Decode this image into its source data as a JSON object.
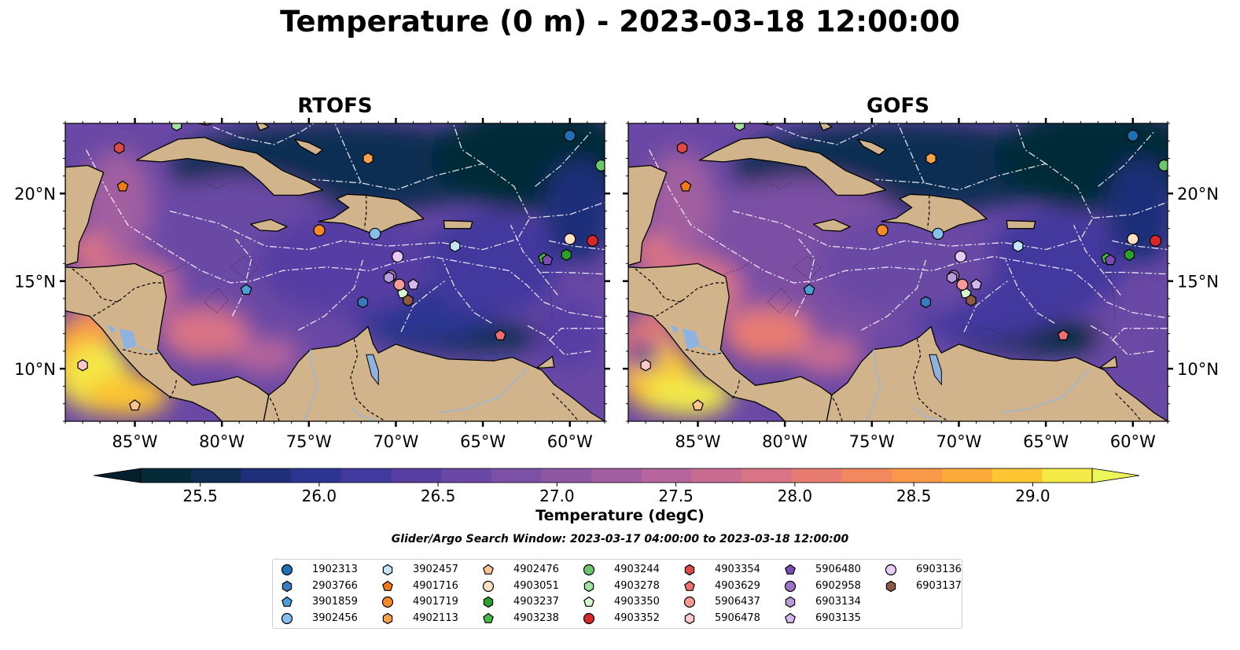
{
  "title": "Temperature (0 m) - 2023-03-18 12:00:00",
  "panels": [
    {
      "title": "RTOFS"
    },
    {
      "title": "GOFS"
    }
  ],
  "map_extent": {
    "lon": [
      -89,
      -58
    ],
    "lat": [
      7,
      24
    ]
  },
  "lon_ticks": [
    {
      "value": -85,
      "label": "85°W"
    },
    {
      "value": -80,
      "label": "80°W"
    },
    {
      "value": -75,
      "label": "75°W"
    },
    {
      "value": -70,
      "label": "70°W"
    },
    {
      "value": -65,
      "label": "65°W"
    },
    {
      "value": -60,
      "label": "60°W"
    }
  ],
  "lat_ticks": [
    {
      "value": 10,
      "label": "10°N"
    },
    {
      "value": 15,
      "label": "15°N"
    },
    {
      "value": 20,
      "label": "20°N"
    }
  ],
  "colorbar": {
    "label": "Temperature (degC)",
    "min": 25.25,
    "max": 29.25,
    "extend": "both",
    "ticks": [
      {
        "value": 25.5,
        "label": "25.5"
      },
      {
        "value": 26.0,
        "label": "26.0"
      },
      {
        "value": 26.5,
        "label": "26.5"
      },
      {
        "value": 27.0,
        "label": "27.0"
      },
      {
        "value": 27.5,
        "label": "27.5"
      },
      {
        "value": 28.0,
        "label": "28.0"
      },
      {
        "value": 28.5,
        "label": "28.5"
      },
      {
        "value": 29.0,
        "label": "29.0"
      }
    ],
    "colors": [
      "#062a38",
      "#0f2d52",
      "#1f2f79",
      "#2c3591",
      "#42399e",
      "#563ea3",
      "#6a48a5",
      "#7c50a4",
      "#8e57a2",
      "#a15ea0",
      "#b5659b",
      "#c86c92",
      "#d97386",
      "#e87c73",
      "#f3885e",
      "#f99848",
      "#fcab39",
      "#fcc531",
      "#f3ea48"
    ],
    "under_color": "#04202c",
    "over_color": "#ecf65a"
  },
  "search_window": "Glider/Argo Search Window: 2023-03-17 04:00:00 to 2023-03-18 12:00:00",
  "colors": {
    "land": "#d2b48c",
    "lake": "#8fb3e0",
    "background_sea": "#6a48a5"
  },
  "platforms": [
    {
      "id": "1902313",
      "marker": "circle",
      "color": "#1f6fb4",
      "lon": -60.0,
      "lat": 23.3
    },
    {
      "id": "2903766",
      "marker": "hexagon",
      "color": "#3a7bc0",
      "lon": -71.9,
      "lat": 13.8
    },
    {
      "id": "3901859",
      "marker": "pentagon",
      "color": "#4d9ed6",
      "lon": -78.6,
      "lat": 14.5
    },
    {
      "id": "3902456",
      "marker": "circle",
      "color": "#85c0ec",
      "lon": -71.2,
      "lat": 17.7
    },
    {
      "id": "3902457",
      "marker": "hexagon",
      "color": "#c6e4f8",
      "lon": -66.6,
      "lat": 17.0
    },
    {
      "id": "4901716",
      "marker": "pentagon",
      "color": "#f07b12",
      "lon": -85.7,
      "lat": 20.4
    },
    {
      "id": "4901719",
      "marker": "circle",
      "color": "#f58b27",
      "lon": -74.4,
      "lat": 17.9
    },
    {
      "id": "4902113",
      "marker": "hexagon",
      "color": "#f8a14a",
      "lon": -71.6,
      "lat": 22.0
    },
    {
      "id": "4902476",
      "marker": "pentagon",
      "color": "#fbc58e",
      "lon": -85.0,
      "lat": 7.9
    },
    {
      "id": "4903051",
      "marker": "circle",
      "color": "#fde0c4",
      "lon": -60.0,
      "lat": 17.4
    },
    {
      "id": "4903237",
      "marker": "hexagon",
      "color": "#2aa12a",
      "lon": -60.2,
      "lat": 16.5
    },
    {
      "id": "4903238",
      "marker": "pentagon",
      "color": "#45b845",
      "lon": -61.5,
      "lat": 16.3
    },
    {
      "id": "4903244",
      "marker": "circle",
      "color": "#6bc66b",
      "lon": -58.2,
      "lat": 21.6
    },
    {
      "id": "4903278",
      "marker": "hexagon",
      "color": "#a3e0a0",
      "lon": -82.6,
      "lat": 23.9
    },
    {
      "id": "4903350",
      "marker": "pentagon",
      "color": "#d5f6d0",
      "lon": -69.6,
      "lat": 14.3
    },
    {
      "id": "4903352",
      "marker": "circle",
      "color": "#d62828",
      "lon": -58.7,
      "lat": 17.3
    },
    {
      "id": "4903354",
      "marker": "hexagon",
      "color": "#e04848",
      "lon": -85.9,
      "lat": 22.6
    },
    {
      "id": "4903629",
      "marker": "pentagon",
      "color": "#ef6f6f",
      "lon": -64.0,
      "lat": 11.9
    },
    {
      "id": "5906437",
      "marker": "circle",
      "color": "#f59a96",
      "lon": -69.8,
      "lat": 14.8
    },
    {
      "id": "5906478",
      "marker": "hexagon",
      "color": "#fcc8c8",
      "lon": -88.0,
      "lat": 10.2
    },
    {
      "id": "5906480",
      "marker": "pentagon",
      "color": "#7b4bb5",
      "lon": -61.3,
      "lat": 16.2
    },
    {
      "id": "6902958",
      "marker": "circle",
      "color": "#9a72c8",
      "lon": -70.3,
      "lat": 15.3
    },
    {
      "id": "6903134",
      "marker": "hexagon",
      "color": "#b89bdb",
      "lon": -70.4,
      "lat": 15.2
    },
    {
      "id": "6903135",
      "marker": "pentagon",
      "color": "#d2b8ec",
      "lon": -69.0,
      "lat": 14.8
    },
    {
      "id": "6903136",
      "marker": "circle",
      "color": "#e6ccf6",
      "lon": -69.9,
      "lat": 16.4
    },
    {
      "id": "6903137",
      "marker": "hexagon",
      "color": "#8c5a44",
      "lon": -69.3,
      "lat": 13.9
    }
  ]
}
